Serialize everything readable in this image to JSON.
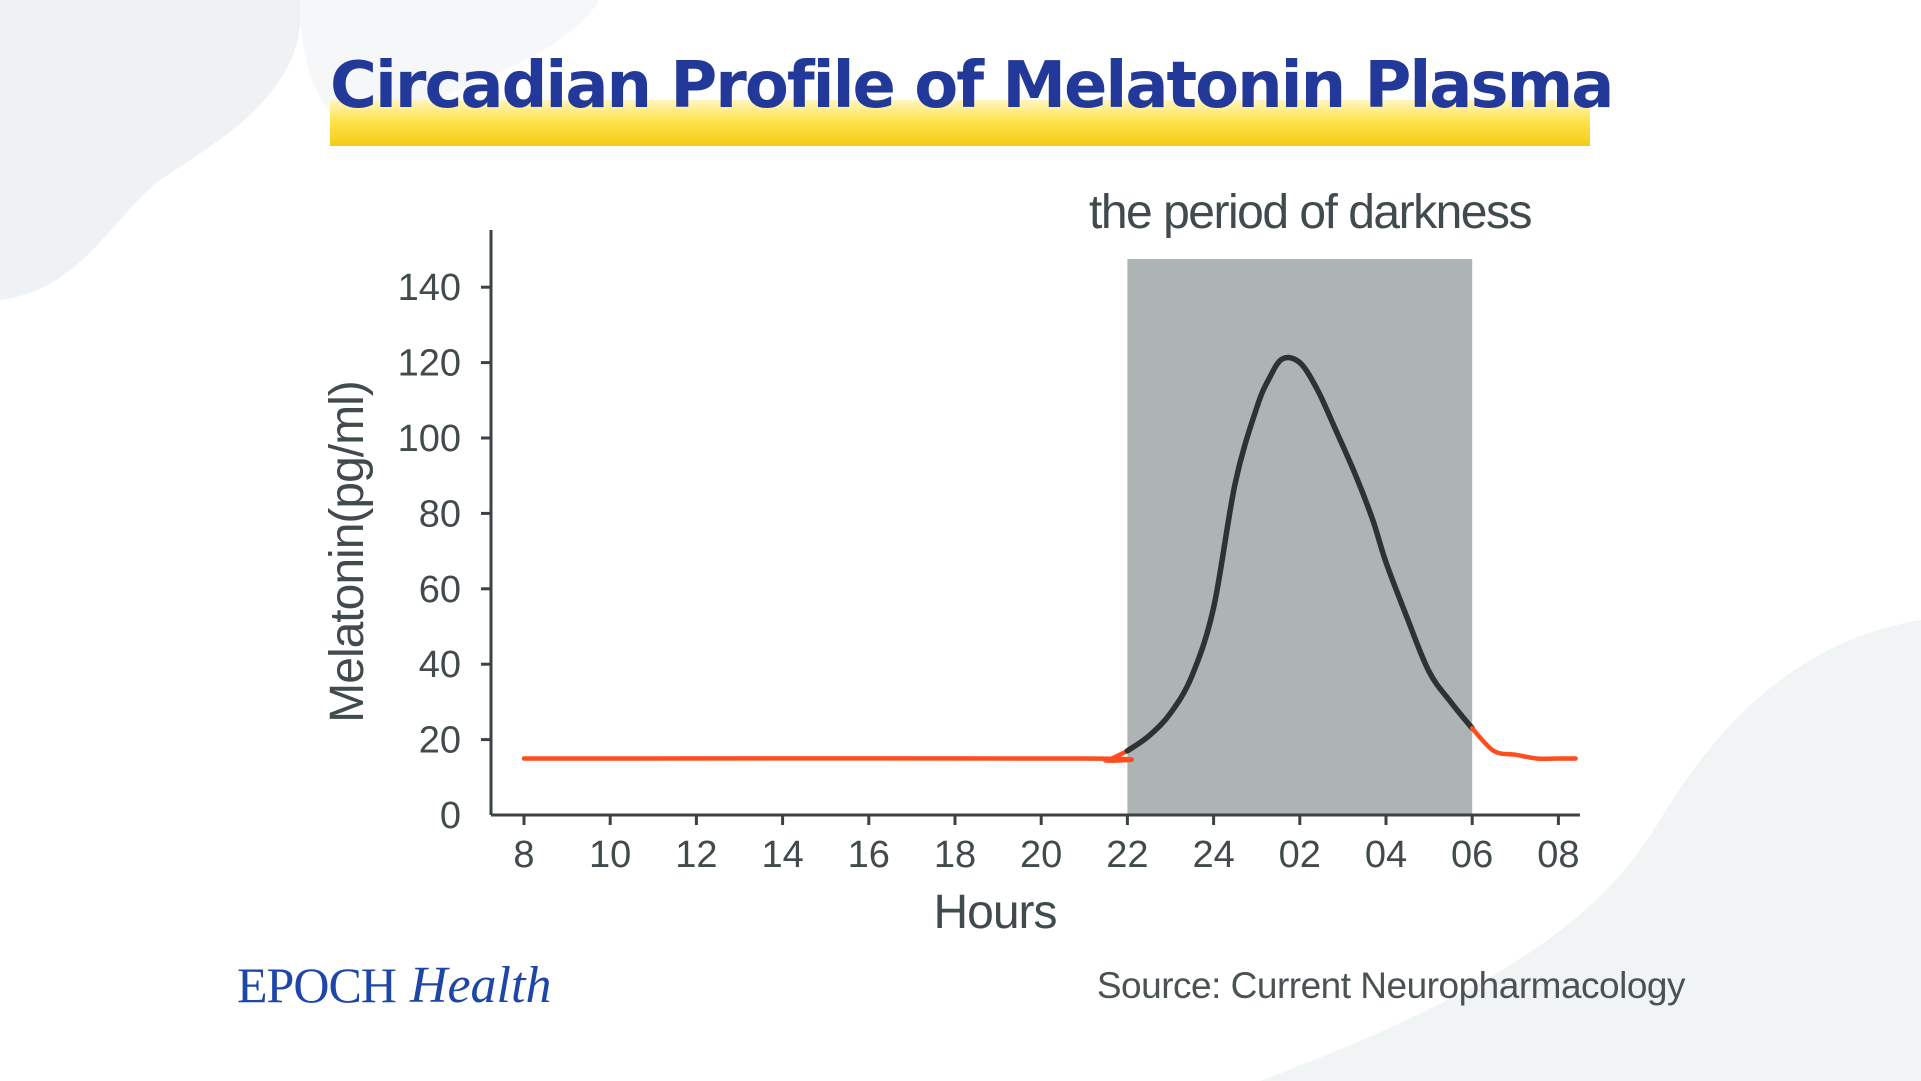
{
  "title": "Circadian Profile of Melatonin Plasma",
  "logo": {
    "brand": "EPOCH",
    "sub": "Health"
  },
  "source": "Source: Current Neuropharmacology",
  "colors": {
    "title": "#23399a",
    "highlight": "#ffe34d",
    "shade": "#aeb4b3",
    "light_curve": "#ff4d1f",
    "dark_curve": "#2d3333",
    "axis": "#3b4244",
    "logo": "#1d46a8"
  },
  "chart_data": {
    "type": "line",
    "title": "",
    "xlabel": "Hours",
    "ylabel": "Melatonin(pg/ml)",
    "x_tick_labels": [
      "8",
      "10",
      "12",
      "14",
      "16",
      "18",
      "20",
      "22",
      "24",
      "02",
      "04",
      "06",
      "08"
    ],
    "y_ticks": [
      0,
      20,
      40,
      60,
      80,
      100,
      120,
      140
    ],
    "ylim": [
      0,
      148
    ],
    "x_unit": "hours since 08:00 on the first day",
    "xlim": [
      -0.75,
      24.5
    ],
    "grid": false,
    "legend": "none",
    "shaded_region": {
      "label": "the period of darkness",
      "x_start": 14,
      "x_end": 22
    },
    "series": [
      {
        "name": "",
        "x": [
          0,
          13,
          13.5,
          14,
          14.5,
          15,
          15.5,
          16,
          16.5,
          17,
          17.3,
          17.6,
          18,
          18.4,
          18.8,
          19.3,
          19.7,
          20,
          20.5,
          21,
          21.5,
          22,
          22.5,
          23,
          23.5,
          24,
          24.4
        ],
        "y": [
          15,
          15,
          14.5,
          17,
          21,
          27,
          37,
          55,
          88,
          108,
          116,
          121,
          120,
          113,
          103,
          90,
          78,
          67,
          52,
          38,
          30,
          23,
          17,
          16,
          15,
          15,
          15
        ]
      }
    ]
  }
}
